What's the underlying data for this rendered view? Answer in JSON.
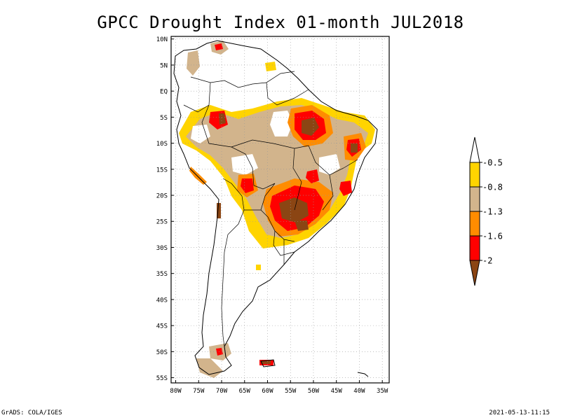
{
  "title": "GPCC Drought Index 01-month JUL2018",
  "map": {
    "lat_labels": [
      "10N",
      "5N",
      "EQ",
      "5S",
      "10S",
      "15S",
      "20S",
      "25S",
      "30S",
      "35S",
      "40S",
      "45S",
      "50S",
      "55S"
    ],
    "lon_labels": [
      "80W",
      "75W",
      "70W",
      "65W",
      "60W",
      "55W",
      "50W",
      "45W",
      "40W",
      "35W"
    ],
    "lat_range": [
      10.5,
      -56
    ],
    "lon_range": [
      -81,
      -33.5
    ]
  },
  "legend": {
    "labels": [
      "-0.5",
      "-0.8",
      "-1.3",
      "-1.6",
      "-2"
    ],
    "colors": [
      "#ffffff",
      "#ffd400",
      "#d2b48c",
      "#ff8c00",
      "#ff0000",
      "#8b4513"
    ]
  },
  "colors": {
    "yellow": "#ffd400",
    "tan": "#d2b48c",
    "orange": "#ff8c00",
    "red": "#ff0000",
    "brown": "#8b4513"
  },
  "footer": {
    "left": "GrADS: COLA/IGES",
    "right": "2021-05-13-11:15"
  }
}
